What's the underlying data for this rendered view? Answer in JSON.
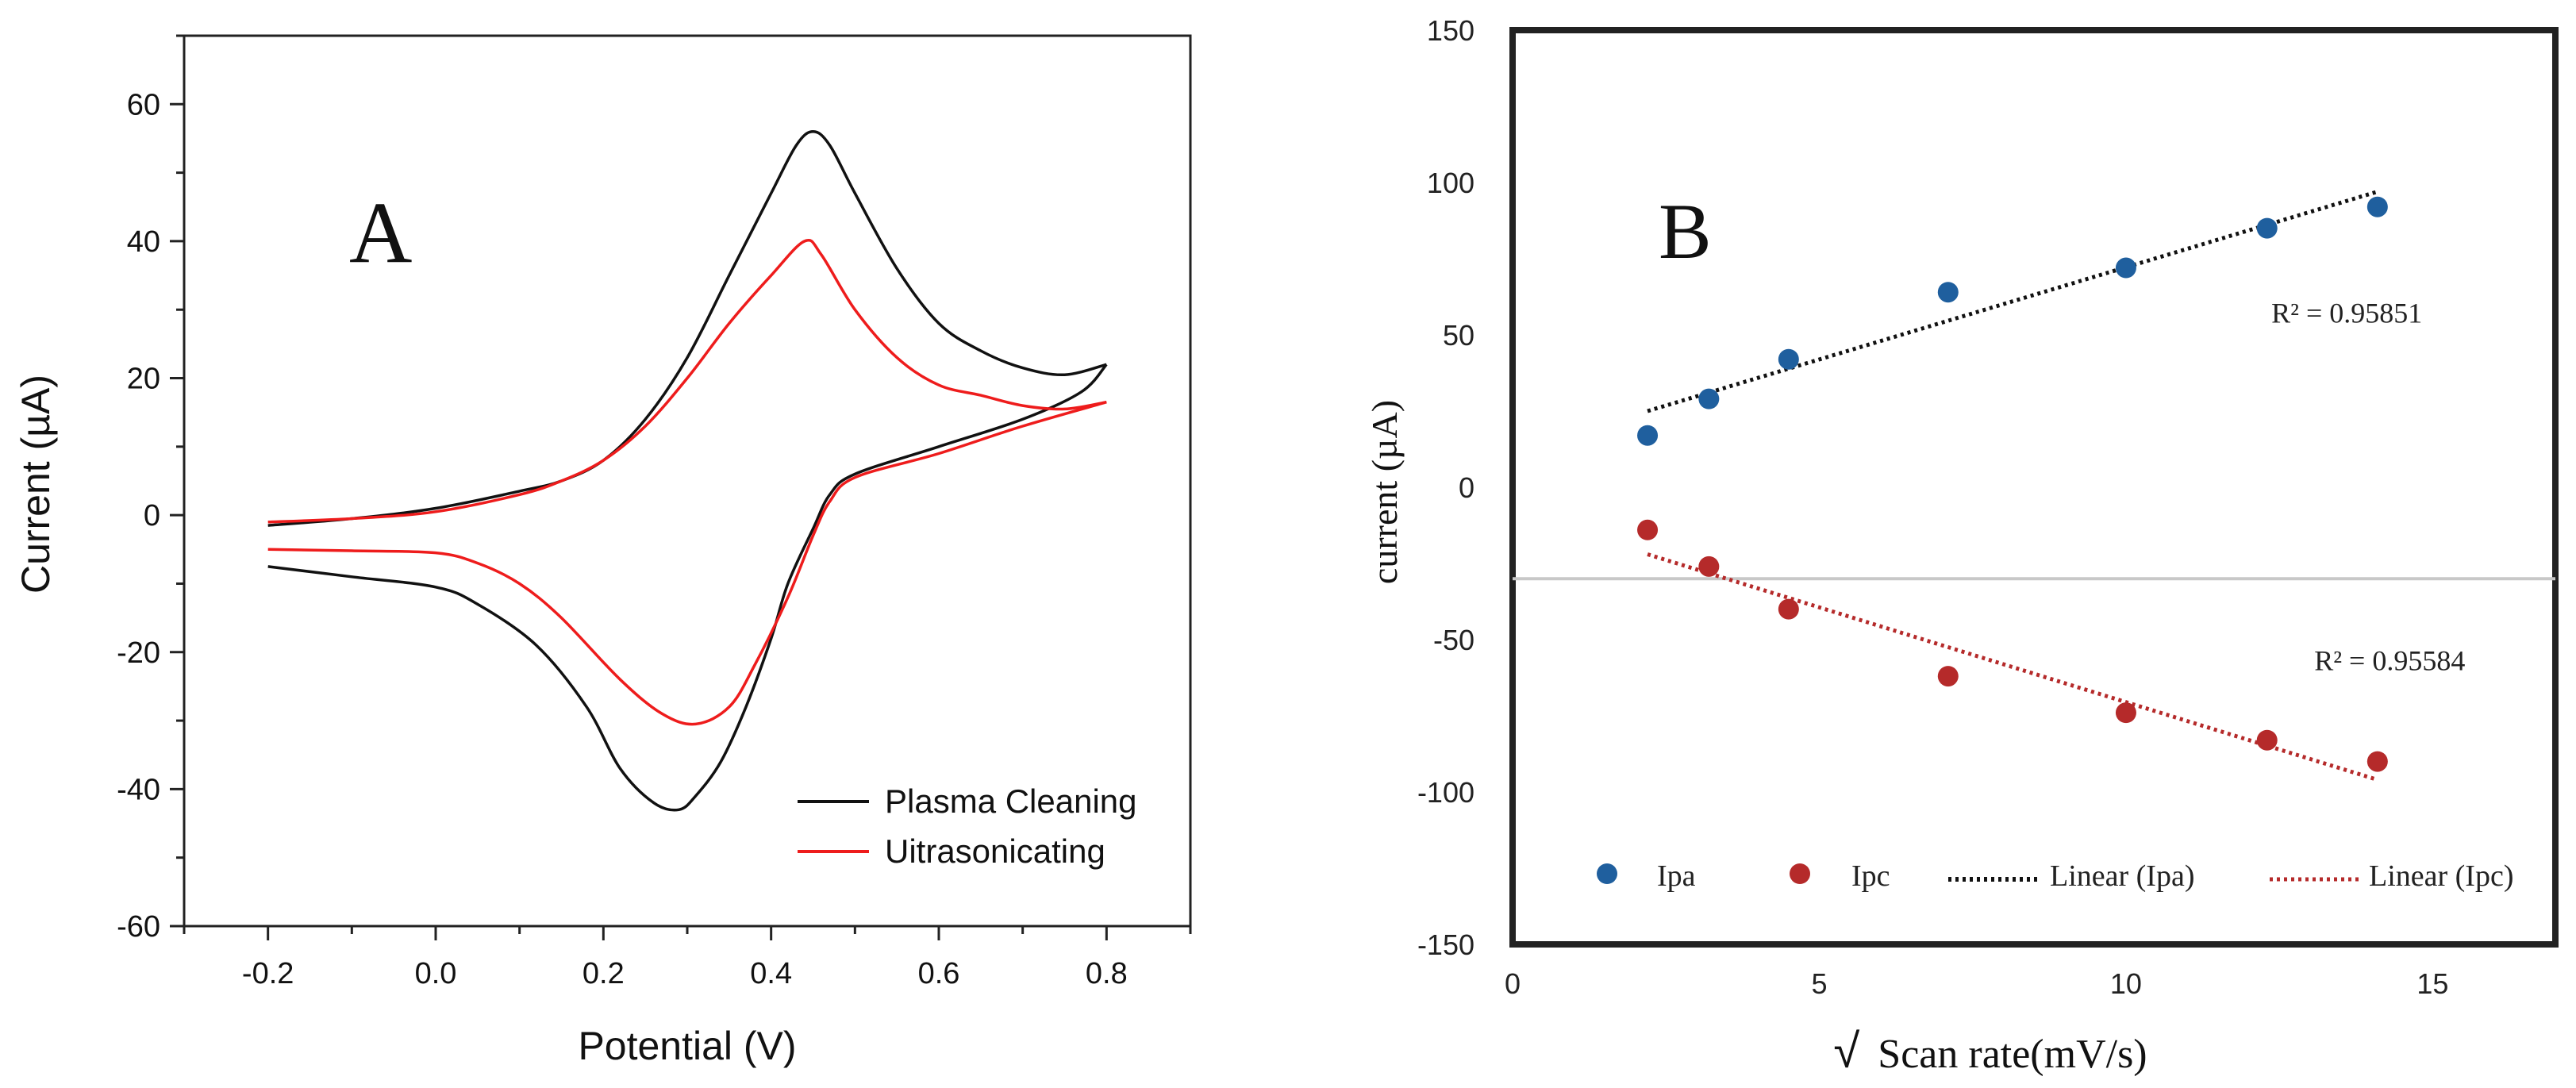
{
  "chart_data": [
    {
      "panel": "A",
      "type": "line",
      "panel_label": "A",
      "xlabel": "Potential (V)",
      "ylabel": "Current (µA)",
      "xlim": [
        -0.3,
        0.9
      ],
      "ylim": [
        -60,
        70
      ],
      "x_ticks": [
        -0.2,
        0.0,
        0.2,
        0.4,
        0.6,
        0.8
      ],
      "x_tick_labels": [
        "-0.2",
        "0.0",
        "0.2",
        "0.4",
        "0.6",
        "0.8"
      ],
      "y_ticks": [
        -60,
        -40,
        -20,
        0,
        20,
        40,
        60
      ],
      "y_tick_labels": [
        "-60",
        "-40",
        "-20",
        "0",
        "20",
        "40",
        "60"
      ],
      "colors": {
        "plasma": "#111111",
        "ultra": "#ee1c1c",
        "axis": "#222222"
      },
      "legend": {
        "position": "bottom-right",
        "entries": [
          {
            "label": "Plasma Cleaning",
            "color": "#111111"
          },
          {
            "label": "Uitrasonicating",
            "color": "#ee1c1c"
          }
        ]
      },
      "series": [
        {
          "name": "Plasma Cleaning",
          "forward": [
            [
              -0.2,
              -1.5
            ],
            [
              -0.1,
              -0.5
            ],
            [
              0.0,
              1
            ],
            [
              0.1,
              3.5
            ],
            [
              0.15,
              5
            ],
            [
              0.2,
              8
            ],
            [
              0.25,
              14
            ],
            [
              0.3,
              23
            ],
            [
              0.35,
              35
            ],
            [
              0.4,
              47
            ],
            [
              0.43,
              54
            ],
            [
              0.45,
              56
            ],
            [
              0.47,
              54
            ],
            [
              0.5,
              47
            ],
            [
              0.55,
              36
            ],
            [
              0.6,
              28
            ],
            [
              0.65,
              24
            ],
            [
              0.7,
              21.5
            ],
            [
              0.75,
              20.5
            ],
            [
              0.8,
              22
            ]
          ],
          "reverse": [
            [
              0.8,
              22
            ],
            [
              0.77,
              18
            ],
            [
              0.7,
              14
            ],
            [
              0.6,
              10
            ],
            [
              0.5,
              6
            ],
            [
              0.47,
              3
            ],
            [
              0.45,
              -2
            ],
            [
              0.42,
              -10
            ],
            [
              0.4,
              -18
            ],
            [
              0.37,
              -28
            ],
            [
              0.34,
              -36
            ],
            [
              0.31,
              -41
            ],
            [
              0.29,
              -43
            ],
            [
              0.26,
              -42
            ],
            [
              0.22,
              -37
            ],
            [
              0.18,
              -28
            ],
            [
              0.12,
              -19
            ],
            [
              0.05,
              -13
            ],
            [
              0.0,
              -10.5
            ],
            [
              -0.1,
              -9
            ],
            [
              -0.2,
              -7.5
            ]
          ]
        },
        {
          "name": "Uitrasonicating",
          "forward": [
            [
              -0.2,
              -1
            ],
            [
              -0.1,
              -0.5
            ],
            [
              0.0,
              0.5
            ],
            [
              0.1,
              3
            ],
            [
              0.15,
              5
            ],
            [
              0.2,
              8
            ],
            [
              0.25,
              13
            ],
            [
              0.3,
              20
            ],
            [
              0.35,
              28
            ],
            [
              0.4,
              35
            ],
            [
              0.44,
              40
            ],
            [
              0.46,
              38
            ],
            [
              0.5,
              30
            ],
            [
              0.55,
              23
            ],
            [
              0.6,
              19
            ],
            [
              0.65,
              17.5
            ],
            [
              0.7,
              16
            ],
            [
              0.75,
              15.5
            ],
            [
              0.8,
              16.5
            ]
          ],
          "reverse": [
            [
              0.8,
              16.5
            ],
            [
              0.7,
              13
            ],
            [
              0.6,
              9
            ],
            [
              0.5,
              5.5
            ],
            [
              0.47,
              2
            ],
            [
              0.45,
              -3
            ],
            [
              0.42,
              -12
            ],
            [
              0.38,
              -22
            ],
            [
              0.35,
              -28
            ],
            [
              0.31,
              -30.5
            ],
            [
              0.27,
              -29
            ],
            [
              0.22,
              -24
            ],
            [
              0.15,
              -15
            ],
            [
              0.1,
              -10
            ],
            [
              0.05,
              -7
            ],
            [
              0.0,
              -5.5
            ],
            [
              -0.1,
              -5.2
            ],
            [
              -0.2,
              -5
            ]
          ]
        }
      ]
    },
    {
      "panel": "B",
      "type": "scatter",
      "panel_label": "B",
      "xlabel_symbol": "√",
      "xlabel": "Scan rate(mV/s)",
      "ylabel": "current (µA)",
      "xlim": [
        0,
        17
      ],
      "ylim": [
        -150,
        150
      ],
      "x_ticks": [
        0,
        5,
        10,
        15
      ],
      "x_tick_labels": [
        "0",
        "5",
        "10",
        "15"
      ],
      "y_ticks": [
        150,
        100,
        50,
        0,
        -50,
        -100,
        -150
      ],
      "y_tick_labels": [
        "150",
        "100",
        "50",
        "0",
        "-50",
        "-100",
        "-150"
      ],
      "reference_line_y": -30,
      "colors": {
        "ipa": "#1f5f9e",
        "ipc": "#b52a2a",
        "ref_line": "#c8c8c8",
        "frame": "#222222"
      },
      "series": [
        {
          "name": "Ipa",
          "x": [
            2.2,
            3.2,
            4.5,
            7.1,
            10.0,
            12.3,
            14.1
          ],
          "y": [
            17,
            29,
            42,
            64,
            72,
            85,
            92
          ]
        },
        {
          "name": "Ipc",
          "x": [
            2.2,
            3.2,
            4.5,
            7.1,
            10.0,
            12.3,
            14.1
          ],
          "y": [
            -14,
            -26,
            -40,
            -62,
            -74,
            -83,
            -90
          ]
        }
      ],
      "trendlines": [
        {
          "name": "Linear (Ipa)",
          "x": [
            2.2,
            14.1
          ],
          "y": [
            25,
            97
          ]
        },
        {
          "name": "Linear (Ipc)",
          "x": [
            2.2,
            14.1
          ],
          "y": [
            -22,
            -96
          ]
        }
      ],
      "annotations": [
        {
          "label": "R² = 0.95851",
          "x": 13.6,
          "y": 54
        },
        {
          "label": "R² = 0.95584",
          "x": 14.3,
          "y": -60
        }
      ],
      "legend": {
        "position": "bottom",
        "entries": [
          {
            "label": "Ipa",
            "kind": "marker"
          },
          {
            "label": "Ipc",
            "kind": "marker"
          },
          {
            "label": "Linear (Ipa)",
            "kind": "dotted"
          },
          {
            "label": "Linear (Ipc)",
            "kind": "dotted"
          }
        ]
      }
    }
  ]
}
